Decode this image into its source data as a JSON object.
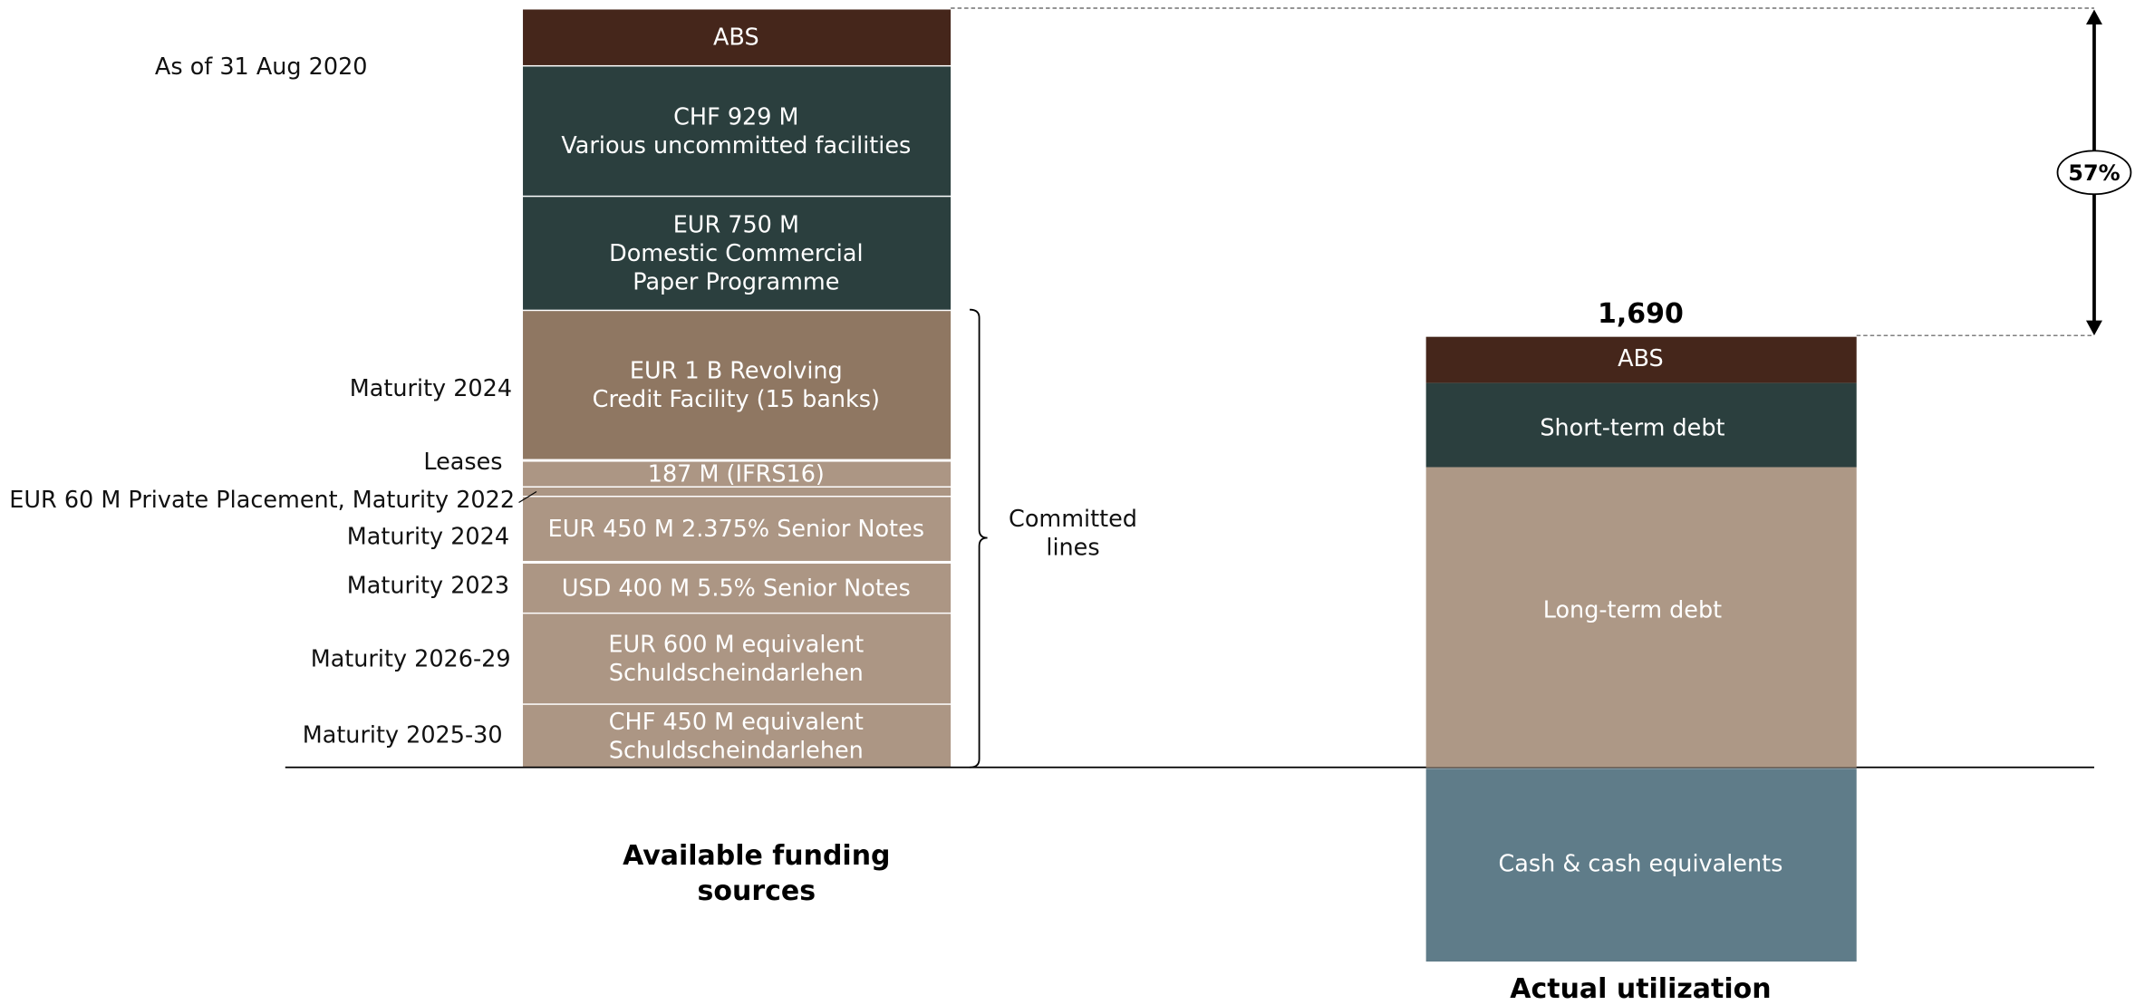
{
  "as_of": "As of 31 Aug 2020",
  "available": {
    "title": [
      "Available funding",
      "sources"
    ],
    "segments": [
      {
        "lines": [
          "ABS"
        ]
      },
      {
        "lines": [
          "CHF 929 M",
          "Various  uncommitted facilities"
        ]
      },
      {
        "lines": [
          "EUR 750 M",
          "Domestic  Commercial",
          "Paper Programme"
        ]
      },
      {
        "lines": [
          "EUR 1 B Revolving",
          "Credit Facility (15 banks)"
        ],
        "side_label": "Maturity 2024"
      },
      {
        "lines": [
          "187 M (IFRS16)"
        ],
        "side_label": "Leases"
      },
      {
        "lines": [],
        "side_label": "EUR 60 M Private Placement, Maturity 2022"
      },
      {
        "lines": [
          "EUR 450 M 2.375% Senior Notes"
        ],
        "side_label": "Maturity 2024"
      },
      {
        "lines": [
          "USD 400 M 5.5% Senior Notes"
        ],
        "side_label": "Maturity 2023"
      },
      {
        "lines": [
          "EUR 600 M equivalent",
          "Schuldscheindarlehen"
        ],
        "side_label": "Maturity 2026-29"
      },
      {
        "lines": [
          "CHF 450 M equivalent",
          "Schuldscheindarlehen"
        ],
        "side_label": "Maturity 2025-30"
      }
    ]
  },
  "committed_label": [
    "Committed",
    "lines"
  ],
  "utilization": {
    "title": "Actual utilization",
    "total": "1,690",
    "segments": [
      "ABS",
      "Short-term debt",
      "Long-term debt"
    ],
    "cash": "Cash & cash equivalents"
  },
  "headroom": "57%"
}
